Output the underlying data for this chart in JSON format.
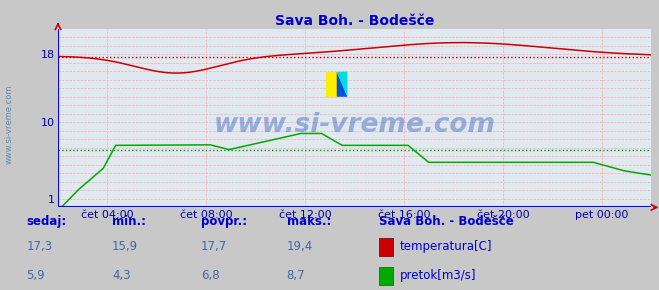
{
  "title": "Sava Boh. - Bodešče",
  "title_color": "#0000cc",
  "bg_color": "#c8c8c8",
  "plot_bg_color": "#e0e8f0",
  "tick_color": "#0000aa",
  "watermark": "www.si-vreme.com",
  "watermark_color": "#2255bb",
  "ylim": [
    0,
    21
  ],
  "yticks": [
    1,
    10,
    18
  ],
  "xlim": [
    0,
    288
  ],
  "xtick_positions": [
    24,
    72,
    120,
    168,
    216,
    264
  ],
  "xtick_labels": [
    "čet 04:00",
    "čet 08:00",
    "čet 12:00",
    "čet 16:00",
    "čet 20:00",
    "pet 00:00"
  ],
  "temp_color": "#cc0000",
  "flow_color": "#00aa00",
  "avg_temp": 17.7,
  "avg_flow": 6.8,
  "legend_title": "Sava Boh. - Bodešče",
  "legend_color": "#0000cc",
  "stats_labels": [
    "sedaj:",
    "min.:",
    "povpr.:",
    "maks.:"
  ],
  "temp_stats": [
    "17,3",
    "15,9",
    "17,7",
    "19,4"
  ],
  "flow_stats": [
    "5,9",
    "4,3",
    "6,8",
    "8,7"
  ],
  "grid_minor_color": "#ffaaaa",
  "axis_line_color": "#0000ff",
  "arrow_color": "#cc0000",
  "left_label": "www.si-vreme.com",
  "left_label_color": "#6688aa"
}
